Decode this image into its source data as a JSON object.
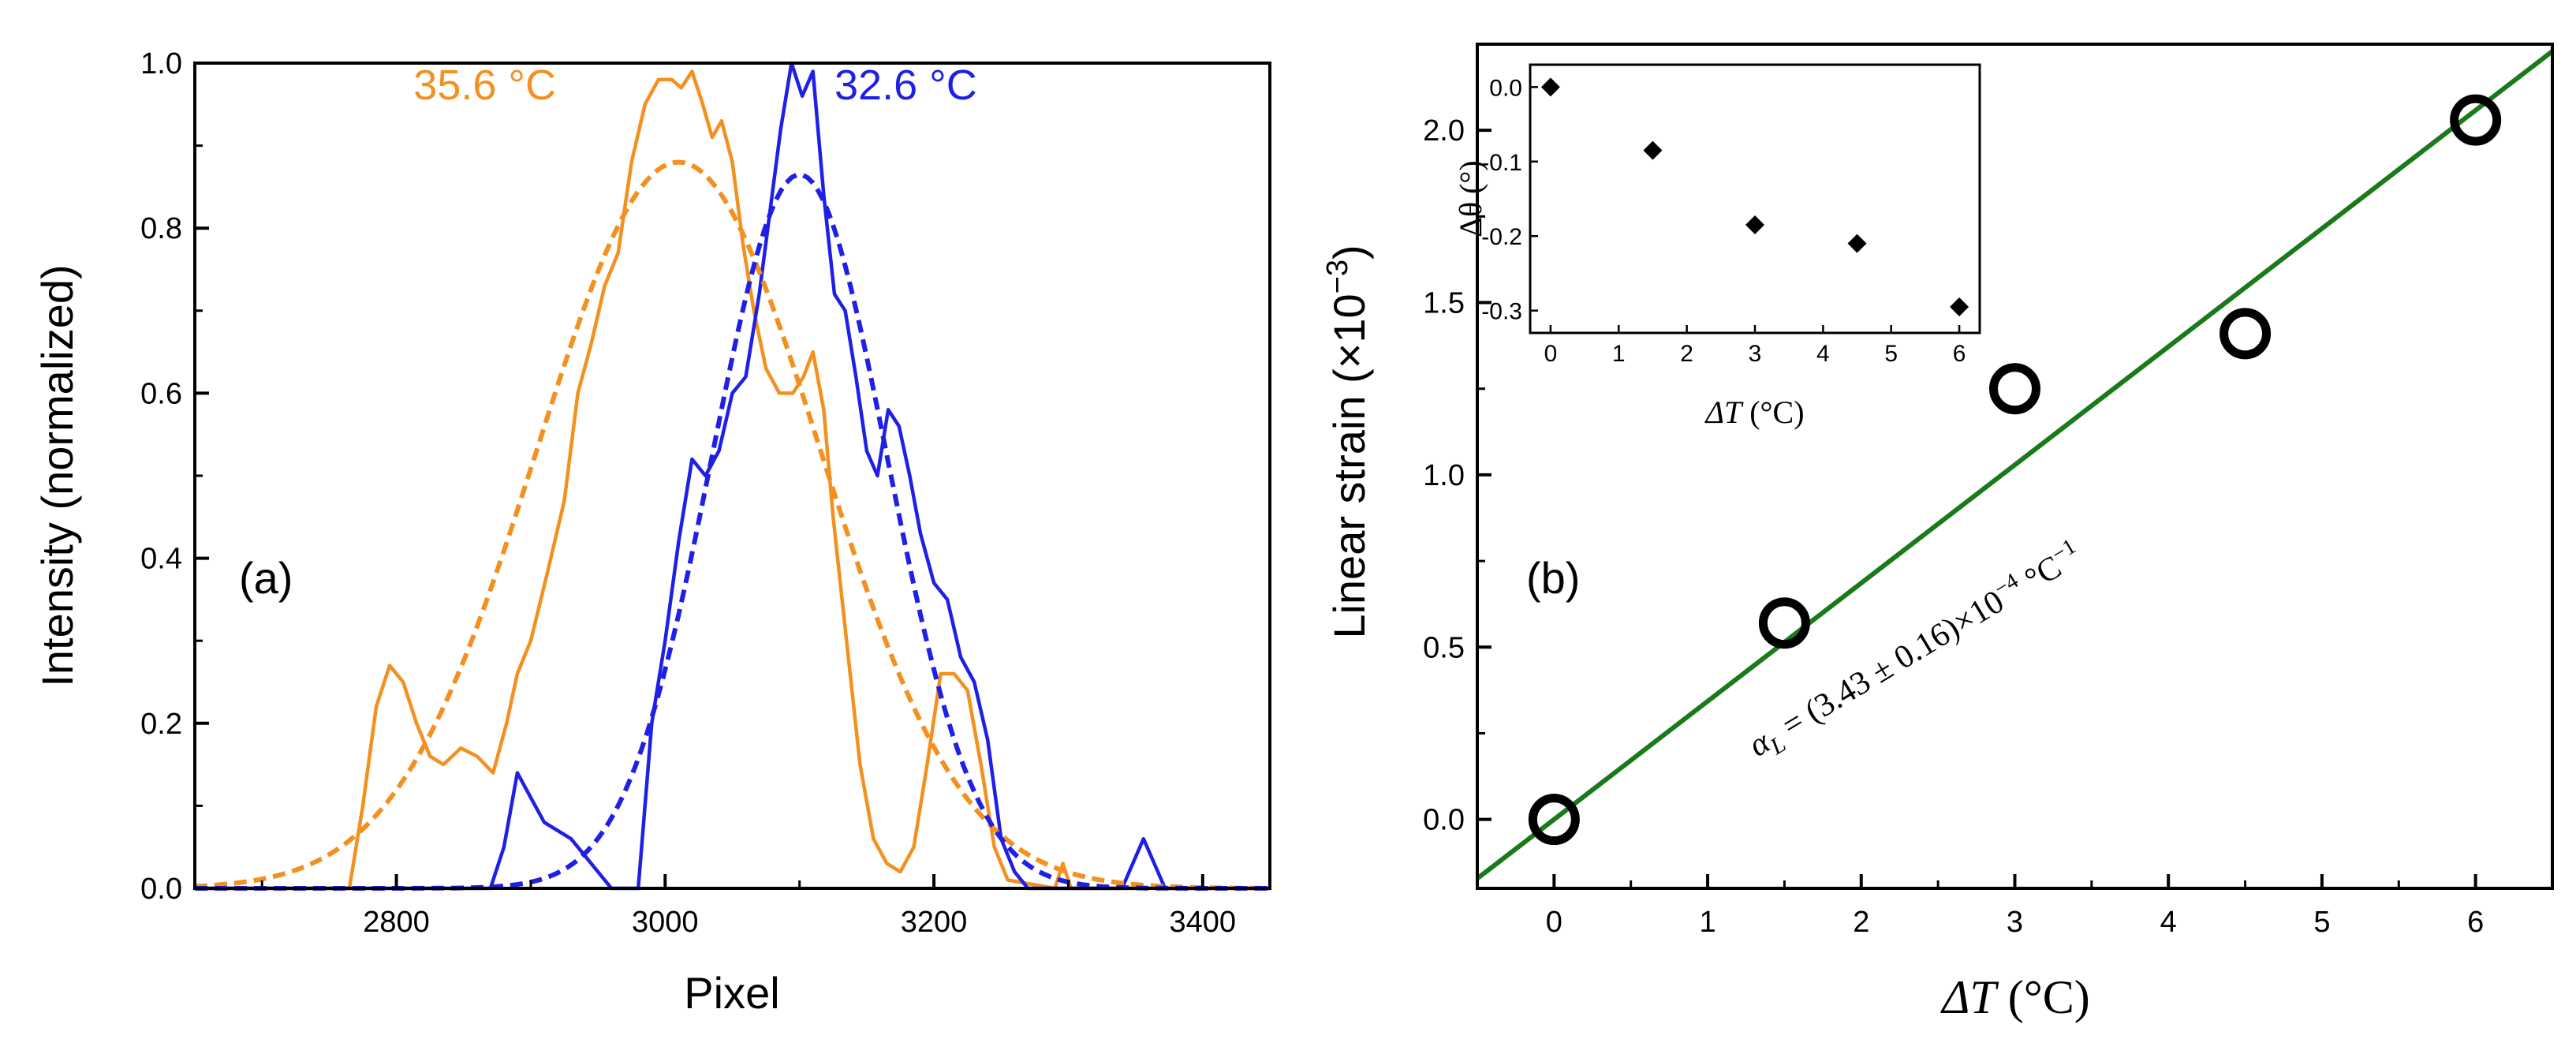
{
  "chart_data": [
    {
      "panel": "(a)",
      "type": "line",
      "xlabel": "Pixel",
      "ylabel": "Intensity (normalized)",
      "xlim": [
        2650,
        3450
      ],
      "ylim": [
        0,
        1.0
      ],
      "xticks": [
        2800,
        3000,
        3200,
        3400
      ],
      "yticks": [
        0.0,
        0.2,
        0.4,
        0.6,
        0.8,
        1.0
      ],
      "xtick_labels": [
        "2800",
        "3000",
        "3200",
        "3400"
      ],
      "ytick_labels": [
        "0.0",
        "0.2",
        "0.4",
        "0.6",
        "0.8",
        "1.0"
      ],
      "annotations": [
        "35.6 °C",
        "32.6 °C"
      ],
      "series": [
        {
          "name": "35.6 °C",
          "style": "solid",
          "color": "#f39020",
          "points": [
            [
              2650,
              0
            ],
            [
              2765,
              0
            ],
            [
              2775,
              0.1
            ],
            [
              2785,
              0.22
            ],
            [
              2795,
              0.27
            ],
            [
              2805,
              0.25
            ],
            [
              2815,
              0.2
            ],
            [
              2825,
              0.16
            ],
            [
              2835,
              0.15
            ],
            [
              2848,
              0.17
            ],
            [
              2860,
              0.16
            ],
            [
              2872,
              0.14
            ],
            [
              2882,
              0.2
            ],
            [
              2890,
              0.26
            ],
            [
              2900,
              0.3
            ],
            [
              2912,
              0.38
            ],
            [
              2925,
              0.47
            ],
            [
              2935,
              0.6
            ],
            [
              2945,
              0.66
            ],
            [
              2955,
              0.73
            ],
            [
              2965,
              0.77
            ],
            [
              2975,
              0.88
            ],
            [
              2985,
              0.95
            ],
            [
              2995,
              0.98
            ],
            [
              3005,
              0.98
            ],
            [
              3012,
              0.97
            ],
            [
              3020,
              0.99
            ],
            [
              3028,
              0.95
            ],
            [
              3035,
              0.91
            ],
            [
              3042,
              0.93
            ],
            [
              3050,
              0.88
            ],
            [
              3058,
              0.78
            ],
            [
              3066,
              0.7
            ],
            [
              3075,
              0.63
            ],
            [
              3085,
              0.6
            ],
            [
              3095,
              0.6
            ],
            [
              3103,
              0.62
            ],
            [
              3110,
              0.65
            ],
            [
              3118,
              0.58
            ],
            [
              3125,
              0.45
            ],
            [
              3135,
              0.3
            ],
            [
              3145,
              0.15
            ],
            [
              3155,
              0.06
            ],
            [
              3165,
              0.03
            ],
            [
              3175,
              0.02
            ],
            [
              3185,
              0.05
            ],
            [
              3195,
              0.15
            ],
            [
              3205,
              0.26
            ],
            [
              3215,
              0.26
            ],
            [
              3225,
              0.24
            ],
            [
              3235,
              0.15
            ],
            [
              3245,
              0.05
            ],
            [
              3255,
              0.01
            ],
            [
              3290,
              0
            ],
            [
              3296,
              0.03
            ],
            [
              3302,
              0
            ],
            [
              3450,
              0
            ]
          ]
        },
        {
          "name": "32.6 °C",
          "style": "solid",
          "color": "#1f1fe6",
          "points": [
            [
              2650,
              0
            ],
            [
              2870,
              0
            ],
            [
              2880,
              0.05
            ],
            [
              2890,
              0.14
            ],
            [
              2900,
              0.11
            ],
            [
              2910,
              0.08
            ],
            [
              2920,
              0.07
            ],
            [
              2930,
              0.06
            ],
            [
              2945,
              0.03
            ],
            [
              2960,
              0
            ],
            [
              2980,
              0
            ],
            [
              2990,
              0.2
            ],
            [
              3000,
              0.3
            ],
            [
              3010,
              0.42
            ],
            [
              3020,
              0.52
            ],
            [
              3030,
              0.5
            ],
            [
              3040,
              0.53
            ],
            [
              3050,
              0.6
            ],
            [
              3060,
              0.62
            ],
            [
              3070,
              0.72
            ],
            [
              3078,
              0.82
            ],
            [
              3086,
              0.92
            ],
            [
              3094,
              1.0
            ],
            [
              3102,
              0.96
            ],
            [
              3110,
              0.99
            ],
            [
              3118,
              0.84
            ],
            [
              3126,
              0.72
            ],
            [
              3134,
              0.7
            ],
            [
              3142,
              0.62
            ],
            [
              3150,
              0.53
            ],
            [
              3158,
              0.5
            ],
            [
              3166,
              0.58
            ],
            [
              3174,
              0.56
            ],
            [
              3182,
              0.5
            ],
            [
              3190,
              0.43
            ],
            [
              3200,
              0.37
            ],
            [
              3210,
              0.35
            ],
            [
              3220,
              0.28
            ],
            [
              3230,
              0.25
            ],
            [
              3240,
              0.18
            ],
            [
              3250,
              0.06
            ],
            [
              3260,
              0.02
            ],
            [
              3270,
              0
            ],
            [
              3340,
              0
            ],
            [
              3348,
              0.03
            ],
            [
              3356,
              0.06
            ],
            [
              3364,
              0.03
            ],
            [
              3372,
              0
            ],
            [
              3450,
              0
            ]
          ]
        },
        {
          "name": "35.6 °C fit",
          "style": "dashed",
          "color": "#f39020",
          "gaussian": {
            "amplitude": 0.88,
            "center": 3010,
            "sigma": 105
          }
        },
        {
          "name": "32.6 °C fit",
          "style": "dashed",
          "color": "#1f1fe6",
          "gaussian": {
            "amplitude": 0.865,
            "center": 3100,
            "sigma": 65
          }
        }
      ]
    },
    {
      "panel": "(b)",
      "type": "scatter",
      "xlabel_symbol": "ΔT",
      "xlabel_unit": " (°C)",
      "ylabel": "Linear strain (×10",
      "ylabel_exp": "−3",
      "ylabel_close": ")",
      "xlim": [
        -0.5,
        6.5
      ],
      "ylim": [
        -0.2,
        2.25
      ],
      "xticks": [
        0,
        1,
        2,
        3,
        4,
        5,
        6
      ],
      "yticks": [
        0.0,
        0.5,
        1.0,
        1.5,
        2.0
      ],
      "xtick_labels": [
        "0",
        "1",
        "2",
        "3",
        "4",
        "5",
        "6"
      ],
      "ytick_labels": [
        "0.0",
        "0.5",
        "1.0",
        "1.5",
        "2.0"
      ],
      "points": [
        [
          0,
          0.0
        ],
        [
          1.5,
          0.57
        ],
        [
          3,
          1.25
        ],
        [
          4.5,
          1.41
        ],
        [
          6,
          2.03
        ]
      ],
      "fit": {
        "slope": 0.343,
        "intercept": 0.0,
        "color": "#1a7a1a"
      },
      "fit_label": {
        "symbol": "α",
        "subscript": "L",
        "text": " = (3.43 ± 0.16)×10",
        "exp": "−4",
        "unit": " °C",
        "unit_exp": "−1"
      },
      "inset": {
        "type": "scatter",
        "xlabel_symbol": "ΔT",
        "xlabel_unit": " (°C)",
        "ylabel": "Δθ (°)",
        "xlim": [
          -0.3,
          6.3
        ],
        "ylim": [
          -0.33,
          0.03
        ],
        "xticks": [
          0,
          1,
          2,
          3,
          4,
          5,
          6
        ],
        "yticks": [
          0.0,
          -0.1,
          -0.2,
          -0.3
        ],
        "xtick_labels": [
          "0",
          "1",
          "2",
          "3",
          "4",
          "5",
          "6"
        ],
        "ytick_labels": [
          "0.0",
          "-0.1",
          "-0.2",
          "-0.3"
        ],
        "points": [
          [
            0,
            0.0
          ],
          [
            1.5,
            -0.085
          ],
          [
            3,
            -0.185
          ],
          [
            4.5,
            -0.21
          ],
          [
            6,
            -0.295
          ]
        ]
      }
    }
  ]
}
